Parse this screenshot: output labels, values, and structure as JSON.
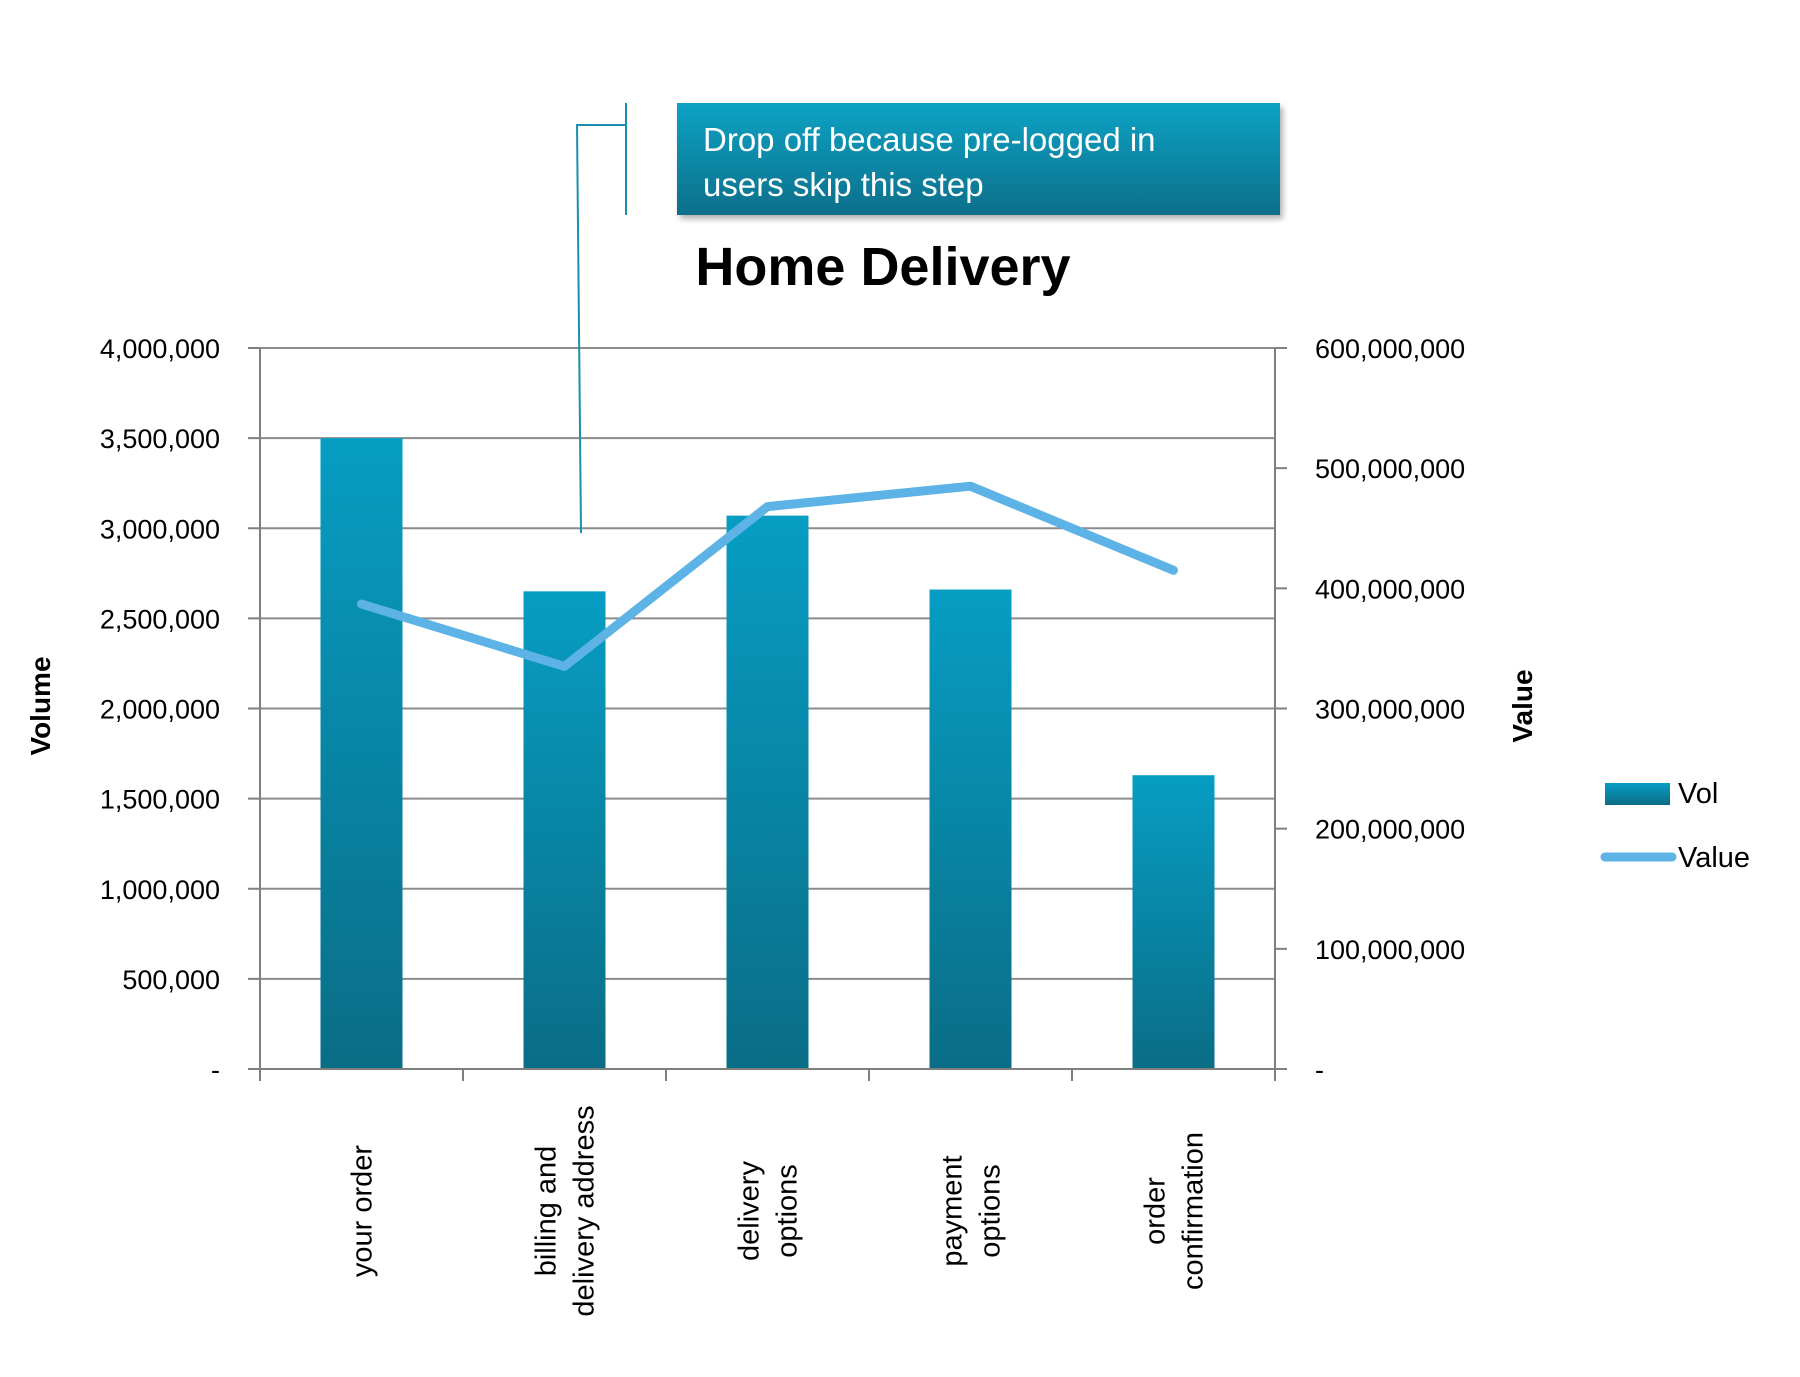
{
  "chart_data": {
    "type": "bar",
    "title": "Home Delivery",
    "categories": [
      "your order",
      "billing and delivery address",
      "delivery options",
      "payment options",
      "order confirmation"
    ],
    "category_lines": [
      [
        "your order"
      ],
      [
        "billing and",
        "delivery address"
      ],
      [
        "delivery",
        "options"
      ],
      [
        "payment",
        "options"
      ],
      [
        "order",
        "confirmation"
      ]
    ],
    "series": [
      {
        "name": "Vol",
        "type": "bar",
        "axis": "left",
        "values": [
          3500000,
          2650000,
          3070000,
          2660000,
          1630000
        ]
      },
      {
        "name": "Value",
        "type": "line",
        "axis": "right",
        "values": [
          387000000,
          335000000,
          468000000,
          485000000,
          415000000
        ]
      }
    ],
    "ylabel": "Volume",
    "y2label": "Value",
    "ylim": [
      0,
      4000000
    ],
    "y2lim": [
      0,
      600000000
    ],
    "y_ticks": [
      "-",
      "500,000",
      "1,000,000",
      "1,500,000",
      "2,000,000",
      "2,500,000",
      "3,000,000",
      "3,500,000",
      "4,000,000"
    ],
    "y2_ticks": [
      "-",
      "100,000,000",
      "200,000,000",
      "300,000,000",
      "400,000,000",
      "500,000,000",
      "600,000,000"
    ],
    "grid": true,
    "legend_position": "right",
    "annotation": {
      "lines": [
        "Drop off because pre-logged in",
        "users skip this step"
      ],
      "target_category": "billing and delivery address"
    },
    "colors": {
      "bar_top": "#079dc3",
      "bar_bottom": "#0a6d86",
      "line": "#5db2e6",
      "callout_top": "#0aa2c4",
      "callout_bottom": "#0a6f8a",
      "grid": "#8c8c8c"
    }
  }
}
